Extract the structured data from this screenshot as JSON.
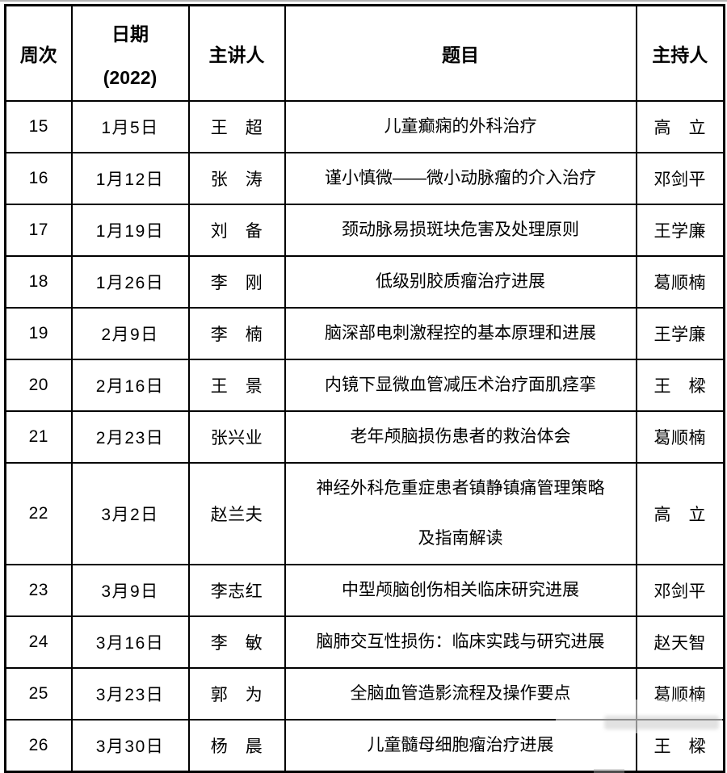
{
  "colors": {
    "border": "#000000",
    "text": "#000000",
    "background": "#ffffff",
    "top_strip": "#b3b3b3"
  },
  "table": {
    "headers": {
      "week": "周次",
      "date_line1": "日期",
      "date_line2": "(2022)",
      "speaker": "主讲人",
      "title": "题目",
      "host": "主持人"
    },
    "rows": [
      {
        "week": "15",
        "date": "1月5日",
        "speaker": "王　超",
        "title": "儿童癫痫的外科治疗",
        "host": "高　立"
      },
      {
        "week": "16",
        "date": "1月12日",
        "speaker": "张　涛",
        "title": "谨小慎微——微小动脉瘤的介入治疗",
        "host": "邓剑平"
      },
      {
        "week": "17",
        "date": "1月19日",
        "speaker": "刘　备",
        "title": "颈动脉易损斑块危害及处理原则",
        "host": "王学廉"
      },
      {
        "week": "18",
        "date": "1月26日",
        "speaker": "李　刚",
        "title": "低级别胶质瘤治疗进展",
        "host": "葛顺楠"
      },
      {
        "week": "19",
        "date": "2月9日",
        "speaker": "李　楠",
        "title": "脑深部电刺激程控的基本原理和进展",
        "host": "王学廉"
      },
      {
        "week": "20",
        "date": "2月16日",
        "speaker": "王　景",
        "title": "内镜下显微血管减压术治疗面肌痉挛",
        "host": "王　樑"
      },
      {
        "week": "21",
        "date": "2月23日",
        "speaker": "张兴业",
        "title": "老年颅脑损伤患者的救治体会",
        "host": "葛顺楠"
      },
      {
        "week": "22",
        "date": "3月2日",
        "speaker": "赵兰夫",
        "title": "神经外科危重症患者镇静镇痛管理策略\n及指南解读",
        "host": "高　立"
      },
      {
        "week": "23",
        "date": "3月9日",
        "speaker": "李志红",
        "title": "中型颅脑创伤相关临床研究进展",
        "host": "邓剑平"
      },
      {
        "week": "24",
        "date": "3月16日",
        "speaker": "李　敏",
        "title": "脑肺交互性损伤：临床实践与研究进展",
        "host": "赵天智"
      },
      {
        "week": "25",
        "date": "3月23日",
        "speaker": "郭　为",
        "title": "全脑血管造影流程及操作要点",
        "host": "葛顺楠"
      },
      {
        "week": "26",
        "date": "3月30日",
        "speaker": "杨　晨",
        "title": "儿童髓母细胞瘤治疗进展",
        "host": "王　樑"
      }
    ]
  }
}
